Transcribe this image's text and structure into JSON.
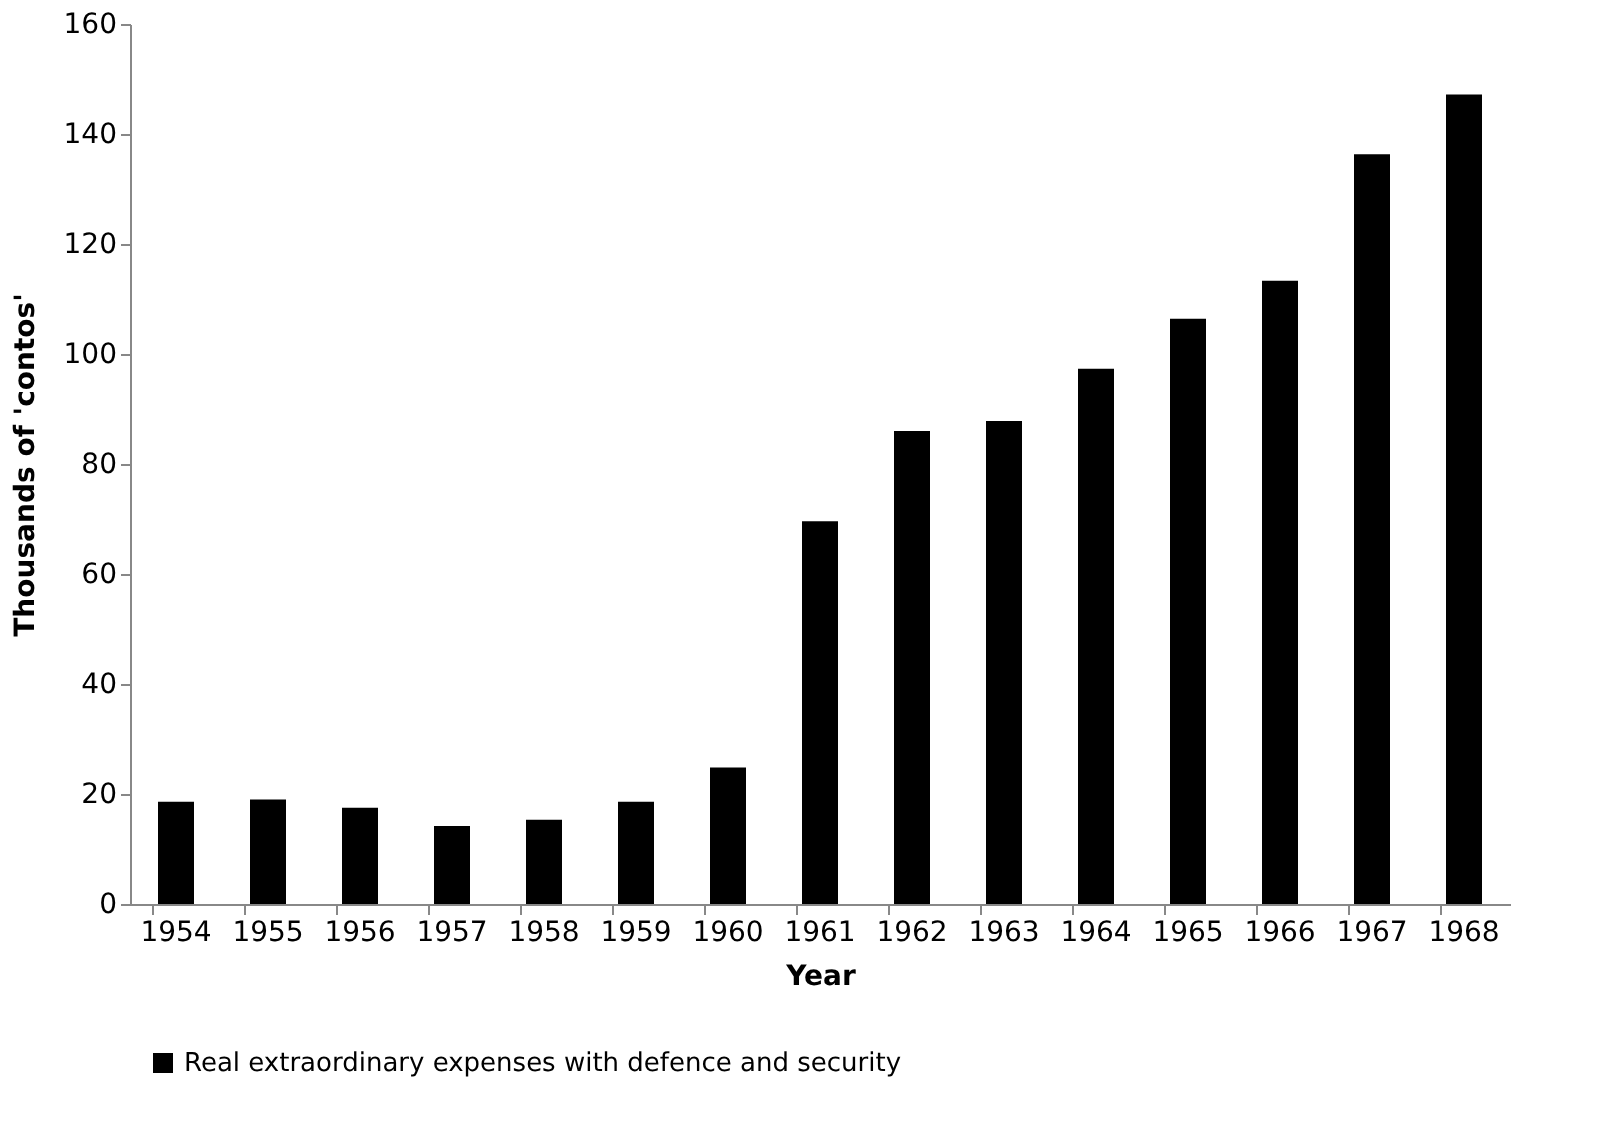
{
  "chart_data": {
    "type": "bar",
    "xlabel": "Year",
    "ylabel": "Thousands of 'contos'",
    "categories": [
      "1954",
      "1955",
      "1956",
      "1957",
      "1958",
      "1959",
      "1960",
      "1961",
      "1962",
      "1963",
      "1964",
      "1965",
      "1966",
      "1967",
      "1968"
    ],
    "series": [
      {
        "name": "Real extraordinary expenses with defence and security",
        "color": "#000000",
        "values": [
          18.6,
          19,
          17.5,
          14.2,
          15.3,
          18.6,
          24.8,
          69.6,
          86,
          87.8,
          97.3,
          106.4,
          113.3,
          136.3,
          147.2
        ]
      }
    ],
    "ylim": [
      0,
      160
    ],
    "yticks": [
      0,
      20,
      40,
      60,
      80,
      100,
      120,
      140,
      160
    ],
    "grid": false,
    "legend": "bottom"
  }
}
